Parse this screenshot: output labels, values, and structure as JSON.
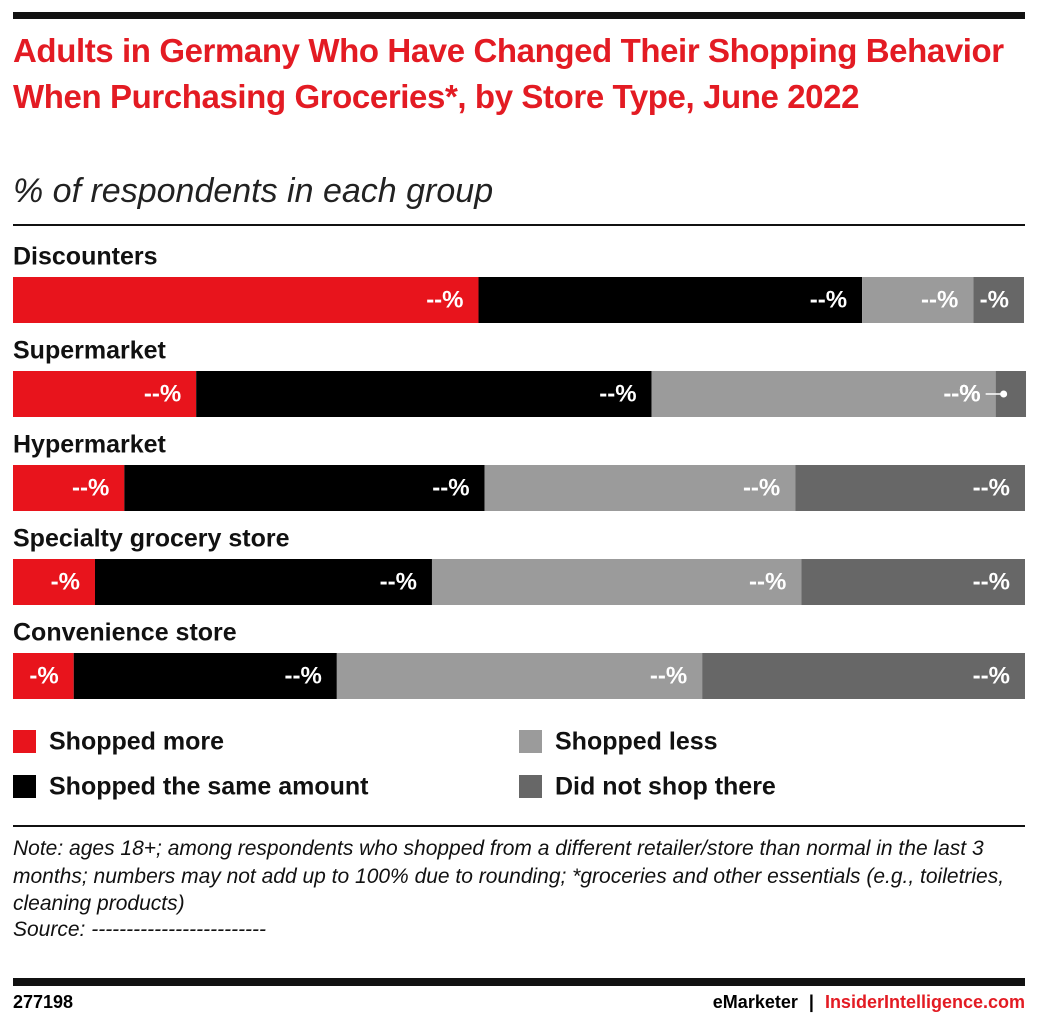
{
  "chart_data": {
    "type": "stacked-bar",
    "orientation": "horizontal",
    "title": "Adults in Germany Who Have Changed Their Shopping Behavior When Purchasing Groceries*, by Store Type, June 2022",
    "subtitle": "% of respondents in each group",
    "categories": [
      "Discounters",
      "Supermarket",
      "Hypermarket",
      "Specialty grocery store",
      "Convenience store"
    ],
    "xlim": [
      0,
      100
    ],
    "series": [
      {
        "name": "Shopped more",
        "color": "#e8141c",
        "values": [
          46.0,
          18.1,
          11.0,
          8.1,
          6.0
        ],
        "value_labels": [
          "--%",
          "--%",
          "--%",
          "-%",
          "-%"
        ]
      },
      {
        "name": "Shopped the same amount",
        "color": "#000000",
        "values": [
          37.9,
          45.0,
          35.6,
          33.3,
          26.0
        ],
        "value_labels": [
          "--%",
          "--%",
          "--%",
          "--%",
          "--%"
        ]
      },
      {
        "name": "Shopped less",
        "color": "#9b9b9b",
        "values": [
          11.0,
          34.0,
          30.7,
          36.5,
          36.1
        ],
        "value_labels": [
          "--%",
          "--%",
          "--%",
          "--%",
          "--%"
        ]
      },
      {
        "name": "Did not shop there",
        "color": "#676767",
        "values": [
          5.0,
          3.0,
          22.7,
          22.1,
          31.9
        ],
        "value_labels": [
          "-%",
          "-%",
          "--%",
          "--%",
          "--%"
        ]
      }
    ],
    "note": "Note: ages 18+; among respondents who shopped from a different retailer/store than normal in the last 3 months; numbers may not add up to 100% due to rounding; *groceries and other essentials (e.g., toiletries, cleaning products)",
    "source": "Source: -------------------------",
    "chart_id": "277198",
    "footer": {
      "brand": "eMarketer",
      "separator": "|",
      "site": "InsiderIntelligence.com"
    }
  }
}
